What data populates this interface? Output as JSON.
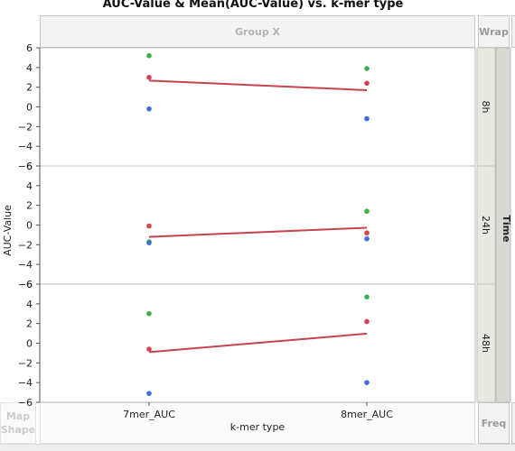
{
  "chart_data": {
    "type": "scatter",
    "title": "AUC-Value & Mean(AUC-Value) vs. k-mer type",
    "xlabel": "k-mer type",
    "ylabel": "AUC-Value",
    "categories": [
      "7mer_AUC",
      "8mer_AUC"
    ],
    "ylim": [
      -6,
      6
    ],
    "yticks": [
      6,
      4,
      2,
      0,
      -2,
      -4,
      -6
    ],
    "grid": false,
    "panel_group_label": "Time",
    "panels": [
      {
        "label": "8h",
        "points": [
          {
            "x": "7mer_AUC",
            "y": 5.2,
            "color": "#3bb04a"
          },
          {
            "x": "7mer_AUC",
            "y": 3.0,
            "color": "#d9414f"
          },
          {
            "x": "7mer_AUC",
            "y": -0.2,
            "color": "#3e6fd6"
          },
          {
            "x": "8mer_AUC",
            "y": 3.9,
            "color": "#3bb04a"
          },
          {
            "x": "8mer_AUC",
            "y": 2.4,
            "color": "#d9414f"
          },
          {
            "x": "8mer_AUC",
            "y": -1.2,
            "color": "#3e6fd6"
          }
        ],
        "mean_line": [
          {
            "x": "7mer_AUC",
            "y": 2.67
          },
          {
            "x": "8mer_AUC",
            "y": 1.7
          }
        ]
      },
      {
        "label": "24h",
        "points": [
          {
            "x": "7mer_AUC",
            "y": -0.1,
            "color": "#d9414f"
          },
          {
            "x": "7mer_AUC",
            "y": -1.7,
            "color": "#3bb04a"
          },
          {
            "x": "7mer_AUC",
            "y": -1.8,
            "color": "#3e6fd6"
          },
          {
            "x": "8mer_AUC",
            "y": 1.4,
            "color": "#3bb04a"
          },
          {
            "x": "8mer_AUC",
            "y": -0.8,
            "color": "#d9414f"
          },
          {
            "x": "8mer_AUC",
            "y": -1.4,
            "color": "#3e6fd6"
          }
        ],
        "mean_line": [
          {
            "x": "7mer_AUC",
            "y": -1.2
          },
          {
            "x": "8mer_AUC",
            "y": -0.27
          }
        ]
      },
      {
        "label": "48h",
        "points": [
          {
            "x": "7mer_AUC",
            "y": 3.0,
            "color": "#3bb04a"
          },
          {
            "x": "7mer_AUC",
            "y": -0.6,
            "color": "#d9414f"
          },
          {
            "x": "7mer_AUC",
            "y": -5.1,
            "color": "#3e6fd6"
          },
          {
            "x": "8mer_AUC",
            "y": 4.7,
            "color": "#3bb04a"
          },
          {
            "x": "8mer_AUC",
            "y": 2.2,
            "color": "#d9414f"
          },
          {
            "x": "8mer_AUC",
            "y": -4.0,
            "color": "#3e6fd6"
          }
        ],
        "mean_line": [
          {
            "x": "7mer_AUC",
            "y": -0.9
          },
          {
            "x": "8mer_AUC",
            "y": 0.97
          }
        ]
      }
    ],
    "mean_line_color": "#c8434e"
  },
  "zones": {
    "group_x": "Group X",
    "wrap": "Wrap",
    "freq": "Freq",
    "map_shape_line1": "Map",
    "map_shape_line2": "Shape"
  }
}
